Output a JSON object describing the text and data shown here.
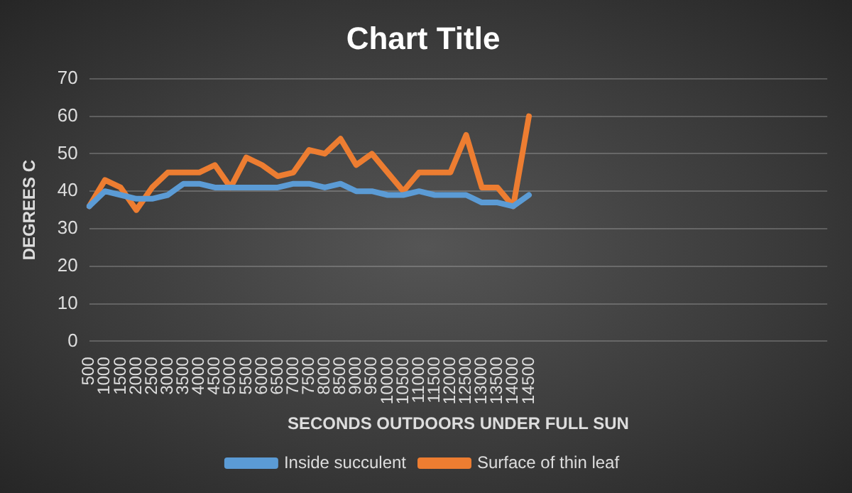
{
  "chart_data": {
    "type": "line",
    "title": "Chart Title",
    "xlabel": "SECONDS OUTDOORS UNDER FULL SUN",
    "ylabel": "DEGREES C",
    "categories": [
      "500",
      "1000",
      "1500",
      "2000",
      "2500",
      "3000",
      "3500",
      "4000",
      "4500",
      "5000",
      "5500",
      "6000",
      "6500",
      "7000",
      "7500",
      "8000",
      "8500",
      "9000",
      "9500",
      "10000",
      "10500",
      "11000",
      "11500",
      "12000",
      "12500",
      "13000",
      "13500",
      "14000",
      "14500",
      null,
      null,
      null,
      null,
      null,
      null,
      null,
      null,
      null,
      null,
      null,
      null,
      null,
      null,
      null,
      null,
      null,
      null,
      null
    ],
    "series": [
      {
        "name": "Inside succulent",
        "color": "#5b9bd5",
        "values": [
          36,
          40,
          39,
          38,
          38,
          39,
          42,
          42,
          41,
          41,
          41,
          41,
          41,
          42,
          42,
          41,
          42,
          40,
          40,
          39,
          39,
          40,
          39,
          39,
          39,
          37,
          37,
          36,
          39,
          null,
          null,
          null,
          null,
          null,
          null,
          null,
          null,
          null,
          null,
          null,
          null,
          null,
          null,
          null,
          null,
          null,
          null,
          null
        ]
      },
      {
        "name": "Surface of thin leaf",
        "color": "#ed7d31",
        "values": [
          36,
          43,
          41,
          35,
          41,
          45,
          45,
          45,
          47,
          41,
          49,
          47,
          44,
          45,
          51,
          50,
          54,
          47,
          50,
          45,
          40,
          45,
          45,
          45,
          55,
          41,
          41,
          36,
          60,
          null,
          null,
          null,
          null,
          null,
          null,
          null,
          null,
          null,
          null,
          null,
          null,
          null,
          null,
          null,
          null,
          null,
          null,
          null
        ]
      }
    ],
    "ylim": [
      0,
      70
    ],
    "yticks": [
      0,
      10,
      20,
      30,
      40,
      50,
      60,
      70
    ],
    "grid": "y",
    "legend": "bottom",
    "marker": "none",
    "line_style": "solid"
  }
}
